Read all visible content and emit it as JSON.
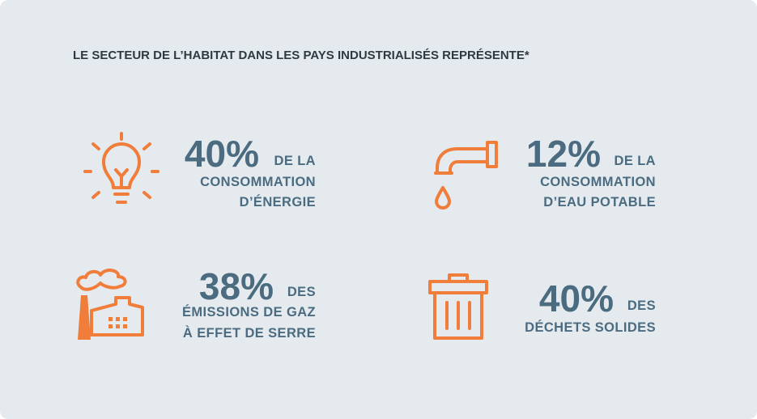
{
  "title": "LE SECTEUR DE L’HABITAT DANS LES PAYS INDUSTRIALISÉS REPRÉSENTE*",
  "stats": [
    {
      "value": "40%",
      "suffix": "DE LA",
      "lines": [
        "CONSOMMATION",
        "D’ÉNERGIE"
      ]
    },
    {
      "value": "12%",
      "suffix": "DE LA",
      "lines": [
        "CONSOMMATION",
        "D’EAU POTABLE"
      ]
    },
    {
      "value": "38%",
      "suffix": "DES",
      "lines": [
        "ÉMISSIONS DE GAZ",
        "À EFFET DE SERRE"
      ]
    },
    {
      "value": "40%",
      "suffix": "DES",
      "lines": [
        "DÉCHETS SOLIDES"
      ]
    }
  ]
}
